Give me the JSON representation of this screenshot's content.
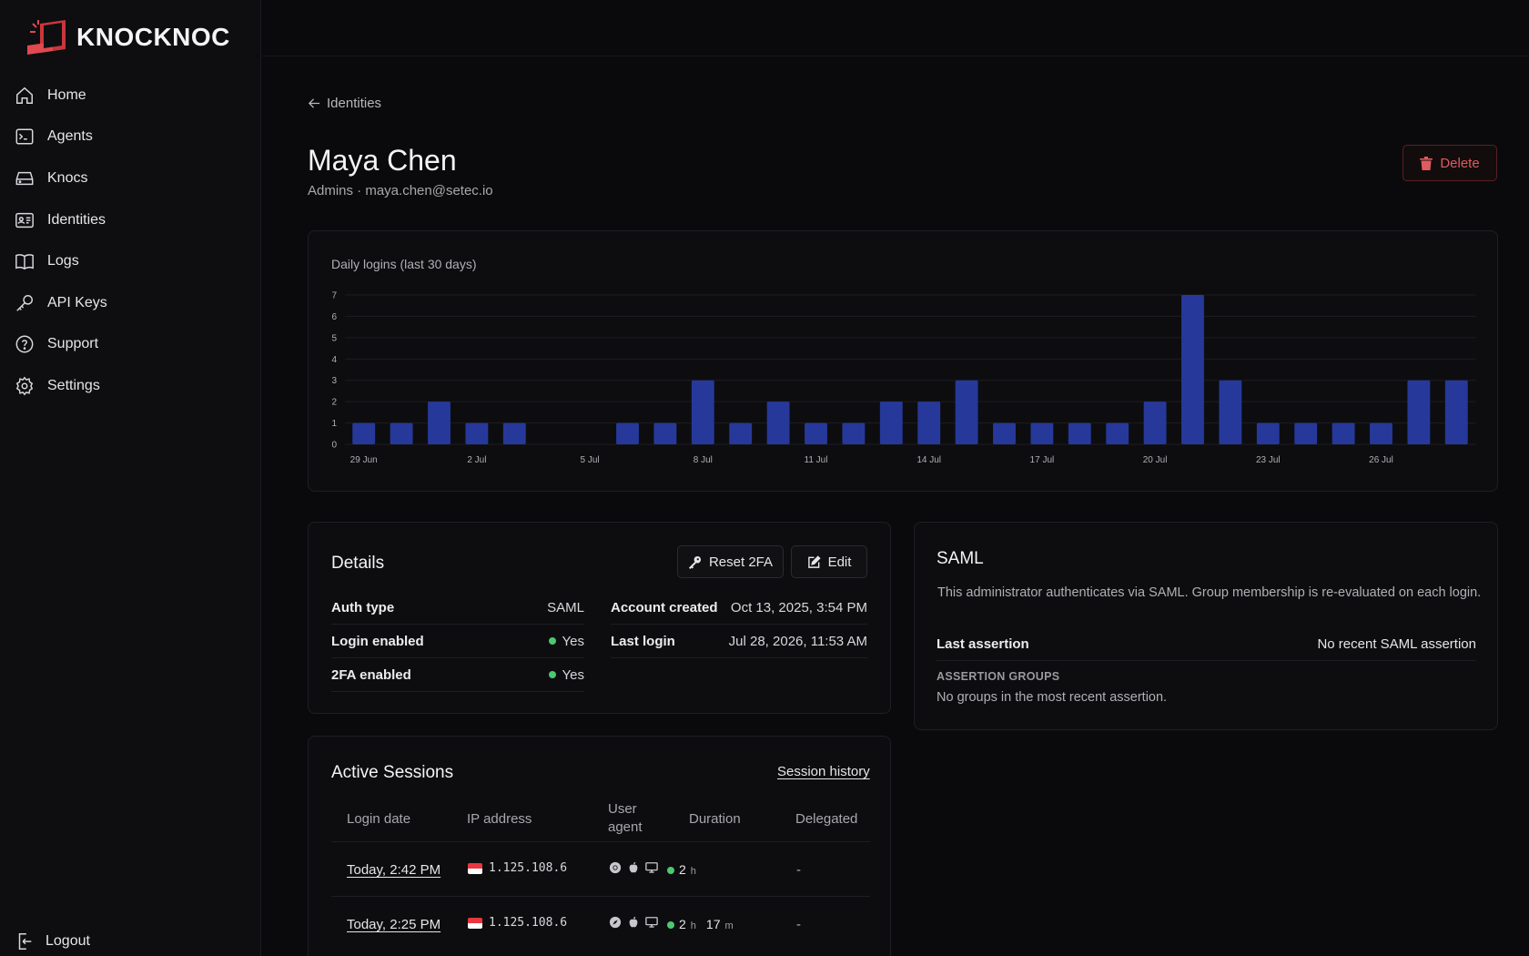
{
  "brand": {
    "name": "KNOCKNOC",
    "accent": "#e0494f"
  },
  "sidebar": {
    "items": [
      {
        "label": "Home",
        "icon": "home-icon"
      },
      {
        "label": "Agents",
        "icon": "terminal-icon"
      },
      {
        "label": "Knocs",
        "icon": "drive-icon"
      },
      {
        "label": "Identities",
        "icon": "id-card-icon"
      },
      {
        "label": "Logs",
        "icon": "book-icon"
      },
      {
        "label": "API Keys",
        "icon": "key-icon"
      },
      {
        "label": "Support",
        "icon": "help-circle-icon"
      },
      {
        "label": "Settings",
        "icon": "gear-icon"
      }
    ],
    "logout_label": "Logout"
  },
  "breadcrumb": {
    "back_label": "Identities"
  },
  "identity": {
    "name": "Maya Chen",
    "subtitle": "Admins · maya.chen@setec.io",
    "delete_label": "Delete"
  },
  "chart_data": {
    "type": "bar",
    "title": "Daily logins (last 30 days)",
    "categories": [
      "29 Jun",
      "30 Jun",
      "1 Jul",
      "2 Jul",
      "3 Jul",
      "4 Jul",
      "5 Jul",
      "6 Jul",
      "7 Jul",
      "8 Jul",
      "9 Jul",
      "10 Jul",
      "11 Jul",
      "12 Jul",
      "13 Jul",
      "14 Jul",
      "15 Jul",
      "16 Jul",
      "17 Jul",
      "18 Jul",
      "19 Jul",
      "20 Jul",
      "21 Jul",
      "22 Jul",
      "23 Jul",
      "24 Jul",
      "25 Jul",
      "26 Jul",
      "27 Jul",
      "28 Jul"
    ],
    "tick_labels": [
      "29 Jun",
      "2 Jul",
      "5 Jul",
      "8 Jul",
      "11 Jul",
      "14 Jul",
      "17 Jul",
      "20 Jul",
      "23 Jul",
      "26 Jul"
    ],
    "values": [
      1,
      1,
      2,
      1,
      1,
      0,
      0,
      1,
      1,
      3,
      1,
      2,
      1,
      1,
      2,
      2,
      3,
      1,
      1,
      1,
      1,
      2,
      7,
      3,
      1,
      1,
      1,
      1,
      3,
      3
    ],
    "ylim": [
      0,
      7
    ],
    "yticks": [
      0,
      1,
      2,
      3,
      4,
      5,
      6,
      7
    ],
    "bar_color": "#26399a",
    "grid": true
  },
  "details": {
    "title": "Details",
    "reset_label": "Reset 2FA",
    "edit_label": "Edit",
    "left": [
      {
        "key": "Auth type",
        "value": "SAML",
        "dot": false
      },
      {
        "key": "Login enabled",
        "value": "Yes",
        "dot": true
      },
      {
        "key": "2FA enabled",
        "value": "Yes",
        "dot": true
      }
    ],
    "right": [
      {
        "key": "Account created",
        "value": "Oct 13, 2025, 3:54 PM"
      },
      {
        "key": "Last login",
        "value": "Jul 28, 2026, 11:53 AM"
      }
    ]
  },
  "saml": {
    "title": "SAML",
    "description": "This administrator authenticates via SAML. Group membership is re-evaluated on each login.",
    "last_assertion_key": "Last assertion",
    "last_assertion_value": "No recent SAML assertion",
    "groups_label": "ASSERTION GROUPS",
    "groups_value": "No groups in the most recent assertion."
  },
  "sessions": {
    "title": "Active Sessions",
    "history_label": "Session history",
    "columns": [
      "Login date",
      "IP address",
      "User",
      "agent",
      "Duration",
      "Delegated"
    ],
    "rows": [
      {
        "date": "Today, 2:42 PM",
        "ip": "1.125.108.6",
        "browser_icon": "chrome-icon",
        "dur_h": "2",
        "dur_h_unit": "h",
        "dur_m": "",
        "dur_m_unit": "",
        "delegated": "-"
      },
      {
        "date": "Today, 2:25 PM",
        "ip": "1.125.108.6",
        "browser_icon": "safari-icon",
        "dur_h": "2",
        "dur_h_unit": "h",
        "dur_m": "17",
        "dur_m_unit": "m",
        "delegated": "-"
      }
    ]
  }
}
